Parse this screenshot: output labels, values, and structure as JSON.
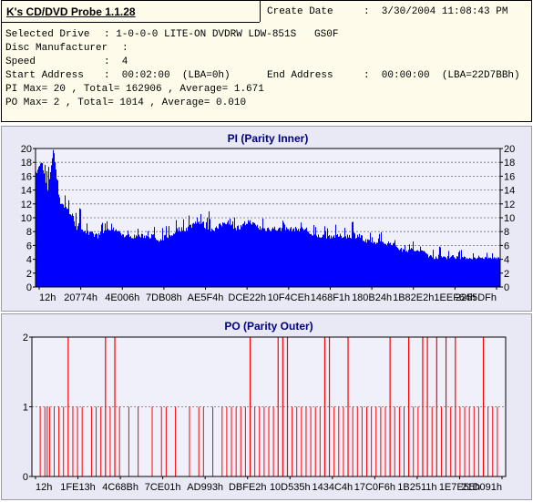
{
  "info": {
    "app_title": "K's CD/DVD Probe 1.1.28",
    "create_date_label": "Create Date",
    "create_date_value": ":  3/30/2004 11:08:43 PM",
    "selected_drive_label": "Selected Drive",
    "selected_drive_value": ": 1-0-0-0 LITE-ON DVDRW LDW-851S   GS0F",
    "disc_manufacturer_label": "Disc Manufacturer",
    "disc_manufacturer_value": ":",
    "speed_label": "Speed",
    "speed_value": ":  4",
    "start_address_label": "Start Address",
    "start_address_value": ":  00:02:00  (LBA=0h)",
    "end_address_label": "End Address",
    "end_address_value": ":  00:00:00  (LBA=22D7BBh)",
    "pi_summary": "PI Max= 20 , Total= 162906 , Average= 1.671",
    "po_summary": "PO Max= 2 , Total= 1014 , Average= 0.010"
  },
  "colors": {
    "pi_series": "#0000ff",
    "po_series": "#ff0000",
    "panel_bg": "#e8e9f4",
    "plot_bg": "#f0f0fb",
    "info_bg": "#fffbea"
  },
  "chart_data": [
    {
      "type": "bar",
      "title": "PI (Parity Inner)",
      "ylim": [
        0,
        20
      ],
      "yticks": [
        0,
        2,
        4,
        6,
        8,
        10,
        12,
        14,
        16,
        18,
        20
      ],
      "xticks": [
        "12h",
        "20774h",
        "4E006h",
        "7DB08h",
        "AE5F4h",
        "DCE22h",
        "10F4CEh",
        "1468F1h",
        "180B24h",
        "1B82E2h",
        "1EEF64h",
        "2255DFh"
      ],
      "grid": true,
      "series": [
        {
          "values": [
            16,
            18,
            13,
            20,
            12,
            11,
            10,
            8,
            8,
            7,
            7,
            7,
            8,
            8,
            8,
            7,
            7,
            7,
            7,
            7,
            7,
            6,
            7,
            7,
            8,
            8,
            8,
            9,
            9,
            8,
            8,
            8,
            9,
            9,
            8,
            8,
            9,
            9,
            8,
            8,
            8,
            8,
            8,
            8,
            8,
            8,
            8,
            7,
            7,
            7,
            7,
            7,
            7,
            7,
            7,
            7,
            6,
            6,
            6,
            6,
            6,
            6,
            5,
            5,
            5,
            5,
            5,
            4,
            4,
            4,
            4,
            4,
            4,
            4,
            4,
            4,
            4,
            4,
            4,
            4
          ],
          "peaks": [
            18,
            19,
            17,
            20,
            15,
            14,
            13,
            12,
            11,
            10,
            10,
            9,
            10,
            9,
            9,
            9,
            8,
            9,
            9,
            9,
            9,
            8,
            9,
            9,
            10,
            10,
            11,
            11,
            11,
            12,
            10,
            11,
            11,
            12,
            11,
            11,
            12,
            10,
            11,
            10,
            11,
            10,
            10,
            10,
            10,
            10,
            10,
            9,
            9,
            9,
            9,
            9,
            9,
            9,
            10,
            10,
            9,
            8,
            8,
            8,
            8,
            7,
            7,
            7,
            7,
            6,
            6,
            6,
            6,
            6,
            6,
            6,
            6,
            5,
            5,
            5,
            5,
            5,
            5,
            5
          ]
        }
      ]
    },
    {
      "type": "bar",
      "title": "PO (Parity Outer)",
      "ylim": [
        0,
        2
      ],
      "yticks": [
        0,
        1,
        2
      ],
      "xticks": [
        "12h",
        "1FE13h",
        "4C68Bh",
        "7CE01h",
        "AD993h",
        "DBFE2h",
        "10D535h",
        "1434C4h",
        "17C0F6h",
        "1B2511h",
        "1E7E55h",
        "21D091h"
      ],
      "grid": true,
      "series": [
        {
          "spikes_2": [
            0.07,
            0.15,
            0.17,
            0.46,
            0.52,
            0.53,
            0.54,
            0.62,
            0.63,
            0.67,
            0.76,
            0.8,
            0.83,
            0.84,
            0.86,
            0.88,
            0.9,
            0.96
          ],
          "spikes_1": [
            0.01,
            0.02,
            0.025,
            0.03,
            0.04,
            0.05,
            0.06,
            0.08,
            0.09,
            0.1,
            0.12,
            0.13,
            0.14,
            0.16,
            0.18,
            0.2,
            0.22,
            0.25,
            0.27,
            0.28,
            0.3,
            0.33,
            0.35,
            0.36,
            0.38,
            0.4,
            0.41,
            0.42,
            0.43,
            0.44,
            0.45,
            0.47,
            0.48,
            0.49,
            0.5,
            0.51,
            0.55,
            0.56,
            0.57,
            0.58,
            0.59,
            0.6,
            0.61,
            0.64,
            0.65,
            0.66,
            0.68,
            0.69,
            0.7,
            0.71,
            0.72,
            0.73,
            0.74,
            0.75,
            0.77,
            0.78,
            0.79,
            0.81,
            0.82,
            0.85,
            0.87,
            0.89,
            0.91,
            0.92,
            0.93,
            0.94,
            0.95,
            0.97,
            0.98,
            0.99
          ]
        }
      ]
    }
  ]
}
